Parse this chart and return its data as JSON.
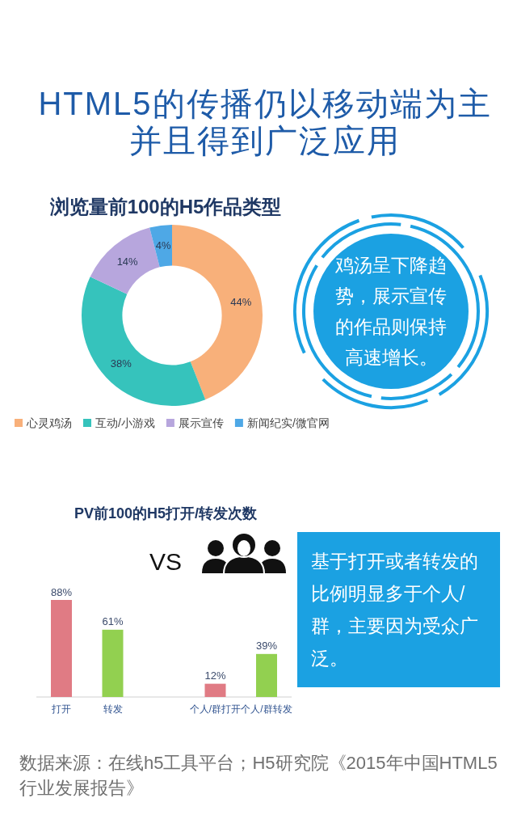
{
  "chart_data": [
    {
      "type": "other",
      "title": "HTML5的传播仍以移动端为主并且得到广泛应用"
    },
    {
      "type": "donut",
      "title": "浏览量前100的H5作品类型",
      "categories": [
        "心灵鸡汤",
        "互动/小游戏",
        "展示宣传",
        "新闻纪实/微官网"
      ],
      "values": [
        44,
        38,
        14,
        4
      ],
      "colors": [
        "#F8B07A",
        "#36C3BC",
        "#B7A6DD",
        "#4EA8E6"
      ],
      "value_labels": [
        "44%",
        "38%",
        "14%",
        "4%"
      ],
      "legend": "bottom",
      "annotations": [
        "鸡汤呈下降趋势，展示宣传的作品则保持高速增长。"
      ]
    },
    {
      "type": "bar",
      "title": "PV前100的H5打开/转发次数",
      "categories": [
        "打开",
        "转发",
        "个人/群打开",
        "个人/群转发"
      ],
      "values": [
        88,
        61,
        12,
        39
      ],
      "colors": [
        "#E07B84",
        "#92D050",
        "#E07B84",
        "#92D050"
      ],
      "value_labels": [
        "88%",
        "61%",
        "12%",
        "39%"
      ],
      "tick_labels": "x",
      "annotations": [
        "VS",
        "基于打开或者转发的比例明显多于个人/群，主要因为受众广泛。",
        "数据来源：在线h5工具平台；H5研究院《2015年中国HTML5行业发展报告》"
      ]
    }
  ]
}
